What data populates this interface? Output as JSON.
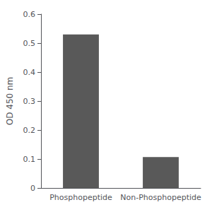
{
  "chart_data": {
    "type": "bar",
    "categories": [
      "Phosphopeptide",
      "Non-Phosphopeptide"
    ],
    "values": [
      0.53,
      0.107
    ],
    "color": "#595959",
    "ylabel": "OD 450 nm",
    "ylim": [
      0,
      0.6
    ],
    "yticks": [
      0,
      0.1,
      0.2,
      0.3,
      0.4,
      0.5,
      0.6
    ],
    "grid": false
  }
}
